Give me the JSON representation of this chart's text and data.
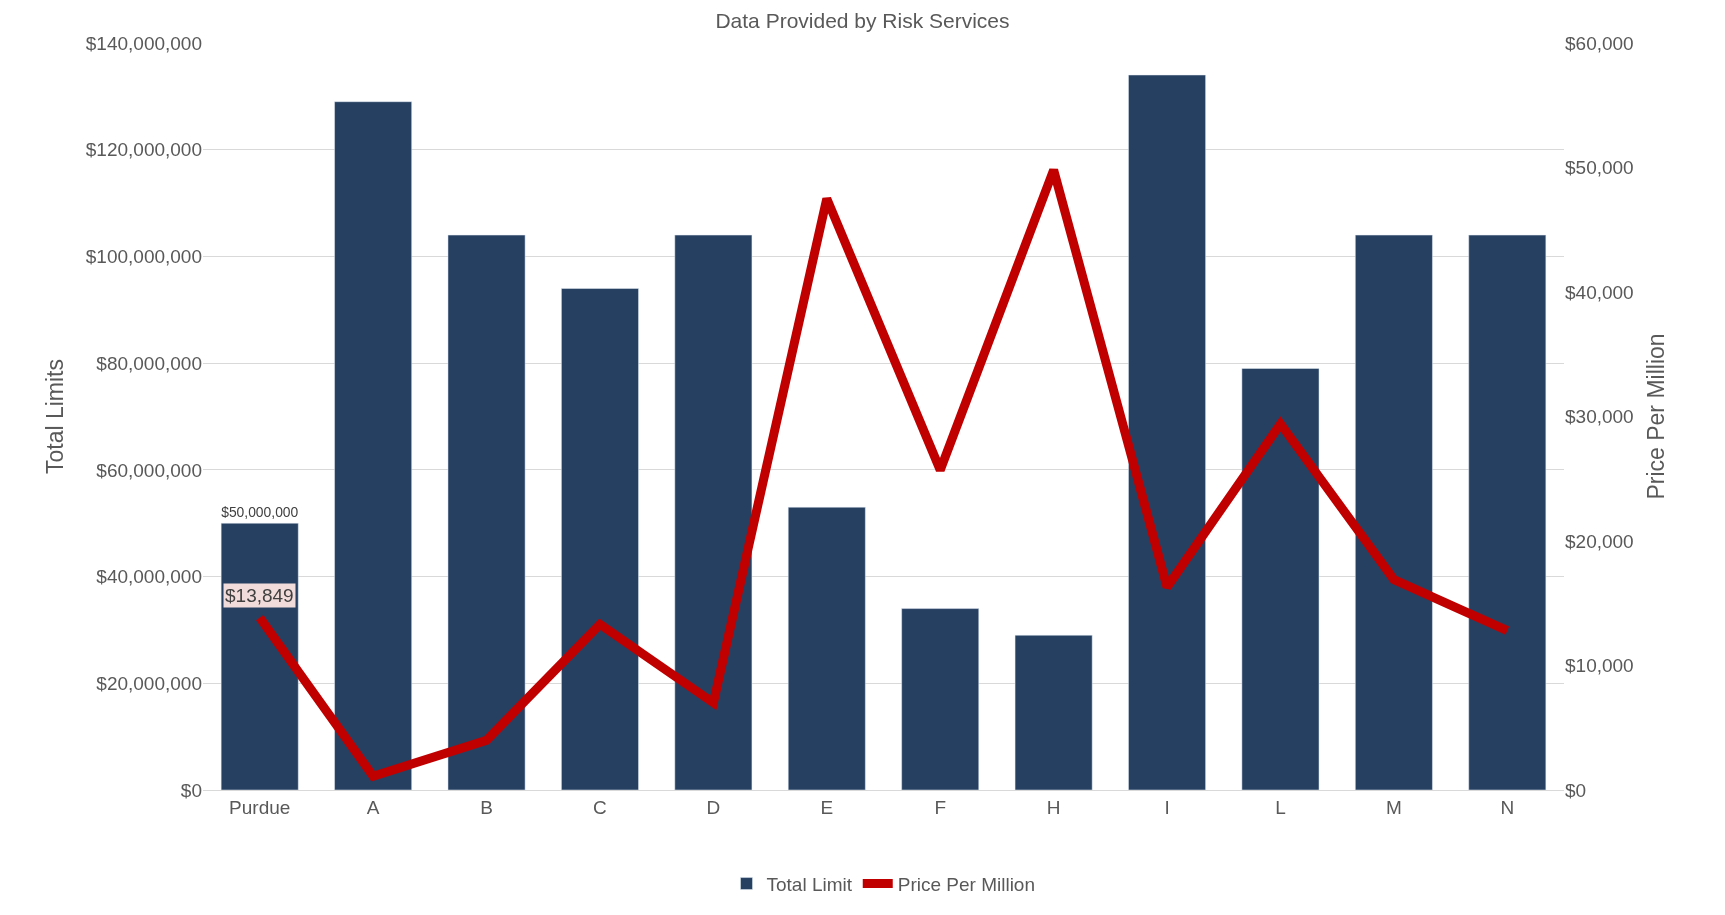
{
  "chart_data": {
    "type": "bar",
    "title": "Data Provided by Risk Services",
    "ylabel": "Total Limits",
    "y2label": "Price Per Million",
    "categories": [
      "Purdue",
      "A",
      "B",
      "C",
      "D",
      "E",
      "F",
      "H",
      "I",
      "L",
      "M",
      "N"
    ],
    "series": [
      {
        "name": "Total Limit",
        "color": "#264061",
        "values": [
          50000000,
          129000000,
          104000000,
          94000000,
          104000000,
          53000000,
          34000000,
          29000000,
          134000000,
          79000000,
          104000000,
          104000000
        ],
        "value_labels": [
          "$50,000,000",
          null,
          null,
          null,
          null,
          null,
          null,
          null,
          null,
          null,
          null,
          null
        ]
      },
      {
        "name": "Price Per Million",
        "type": "line",
        "axis": "y2",
        "color": "#c00000",
        "values": [
          13849,
          1100,
          4000,
          13300,
          7000,
          47500,
          25700,
          49800,
          16300,
          29400,
          16900,
          12800
        ],
        "value_labels": [
          "$13,849",
          null,
          null,
          null,
          null,
          null,
          null,
          null,
          null,
          null,
          null,
          null
        ]
      }
    ],
    "ylim": [
      0,
      140000000
    ],
    "yticks": [
      {
        "value": 0,
        "label": "$0"
      },
      {
        "value": 20000000,
        "label": "$20,000,000"
      },
      {
        "value": 40000000,
        "label": "$40,000,000"
      },
      {
        "value": 60000000,
        "label": "$60,000,000"
      },
      {
        "value": 80000000,
        "label": "$80,000,000"
      },
      {
        "value": 100000000,
        "label": "$100,000,000"
      },
      {
        "value": 120000000,
        "label": "$120,000,000"
      },
      {
        "value": 140000000,
        "label": "$140,000,000"
      }
    ],
    "y2lim": [
      0,
      60000
    ],
    "y2ticks": [
      {
        "value": 0,
        "label": "$0"
      },
      {
        "value": 10000,
        "label": "$10,000"
      },
      {
        "value": 20000,
        "label": "$20,000"
      },
      {
        "value": 30000,
        "label": "$30,000"
      },
      {
        "value": 40000,
        "label": "$40,000"
      },
      {
        "value": 50000,
        "label": "$50,000"
      },
      {
        "value": 60000,
        "label": "$60,000"
      }
    ],
    "grid": "y",
    "legend": "bottom",
    "marker": "none",
    "line_style": "solid"
  }
}
